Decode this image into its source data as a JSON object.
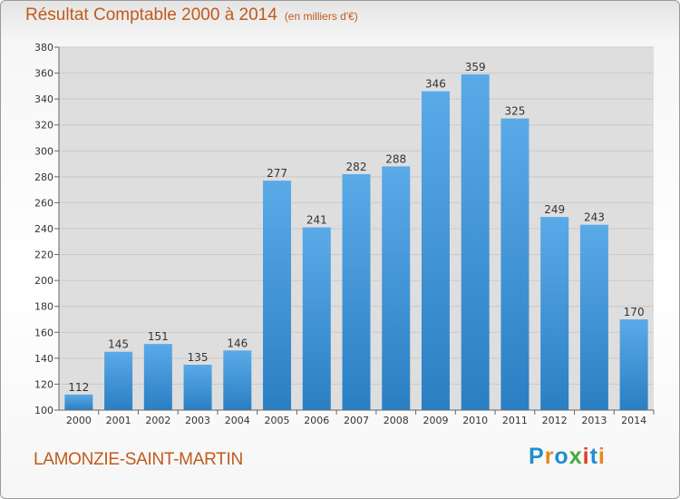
{
  "page": {
    "title": "Résultat Comptable 2000 à 2014",
    "subtitle": "(en milliers d'€)",
    "place": "LAMONZIE-SAINT-MARTIN",
    "logo": "Proxiti"
  },
  "colors": {
    "title": "#c25a1b",
    "bar_light": "#5aaae8",
    "bar_dark": "#2a7fc3",
    "grid": "#c9c9c9",
    "plot_bg": "#dedede",
    "logo_letters": [
      "#1f8ed0",
      "#e8881a",
      "#1f8ed0",
      "#4aa83c",
      "#e03c2a",
      "#1f8ed0",
      "#e8881a"
    ]
  },
  "chart_data": {
    "type": "bar",
    "categories": [
      "2000",
      "2001",
      "2002",
      "2003",
      "2004",
      "2005",
      "2006",
      "2007",
      "2008",
      "2009",
      "2010",
      "2011",
      "2012",
      "2013",
      "2014"
    ],
    "values": [
      112,
      145,
      151,
      135,
      146,
      277,
      241,
      282,
      288,
      346,
      359,
      325,
      249,
      243,
      170
    ],
    "title": "Résultat Comptable 2000 à 2014",
    "subtitle": "(en milliers d'€)",
    "xlabel": "",
    "ylabel": "",
    "ylim": [
      100,
      380
    ],
    "yticks": [
      100,
      120,
      140,
      160,
      180,
      200,
      220,
      240,
      260,
      280,
      300,
      320,
      340,
      360,
      380
    ],
    "grid": true,
    "data_labels": true
  }
}
